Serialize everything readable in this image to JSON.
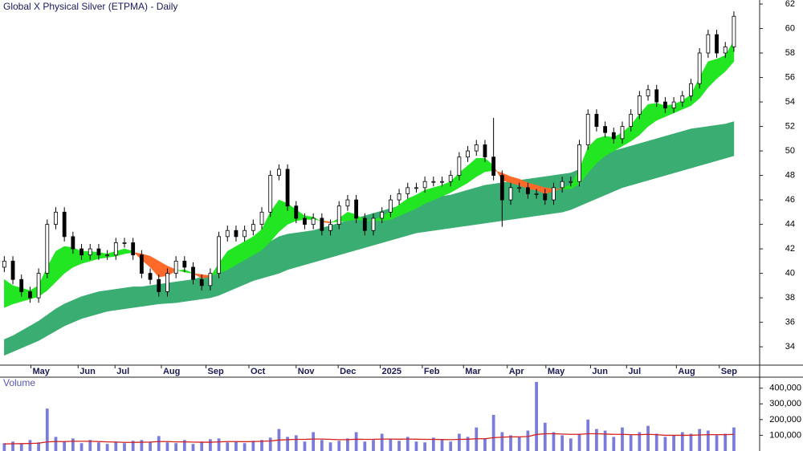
{
  "chart_data": {
    "type": "candlestick",
    "title": "Global X Physical Silver (ETPMA) - Daily",
    "xlim": [
      -0.5,
      88
    ],
    "xticks": [
      {
        "value": 3.1,
        "label": "May"
      },
      {
        "value": 8.6,
        "label": "Jun"
      },
      {
        "value": 12.9,
        "label": "Jul"
      },
      {
        "value": 18.3,
        "label": "Aug"
      },
      {
        "value": 23.5,
        "label": "Sep"
      },
      {
        "value": 28.5,
        "label": "Oct"
      },
      {
        "value": 34,
        "label": "Nov"
      },
      {
        "value": 38.9,
        "label": "Dec"
      },
      {
        "value": 43.8,
        "label": "2025"
      },
      {
        "value": 48.7,
        "label": "Feb"
      },
      {
        "value": 53.5,
        "label": "Mar"
      },
      {
        "value": 58.6,
        "label": "Apr"
      },
      {
        "value": 63.1,
        "label": "May"
      },
      {
        "value": 68.3,
        "label": "Jun"
      },
      {
        "value": 72.5,
        "label": "Jul"
      },
      {
        "value": 78.3,
        "label": "Aug"
      },
      {
        "value": 83.3,
        "label": "Sep"
      }
    ],
    "ylim": [
      32.5,
      62.33
    ],
    "yticks": [
      34,
      36,
      38,
      40,
      42,
      44,
      46,
      48,
      50,
      52,
      54,
      56,
      58,
      60,
      62
    ],
    "open": [
      40.5,
      41,
      39.5,
      38.5,
      38,
      40,
      44,
      45,
      43,
      42,
      41.5,
      42,
      41.5,
      41.5,
      42.5,
      42.5,
      41.5,
      40,
      39.5,
      38.5,
      40,
      41,
      40.5,
      39.5,
      39,
      40,
      43,
      43.5,
      43,
      43.5,
      44,
      45,
      48,
      48.5,
      45.5,
      44.5,
      44,
      44.5,
      43.5,
      44,
      45.5,
      46,
      44.5,
      43.5,
      44.5,
      45,
      46,
      46.5,
      47,
      47,
      47.5,
      47.5,
      47.5,
      48,
      49.5,
      50,
      50.5,
      49.5,
      48,
      46,
      47,
      47,
      46.5,
      46.5,
      46,
      47,
      47.5,
      47.5,
      50.5,
      53,
      52,
      51.5,
      51,
      52,
      53,
      54.5,
      55,
      54,
      53.5,
      54,
      54.5,
      55.5,
      58,
      59.5,
      58,
      58.5
    ],
    "high": [
      41.4,
      41.4,
      39.9,
      38.9,
      40.4,
      44.4,
      45.4,
      45.4,
      43.4,
      42.4,
      42.4,
      42.4,
      41.9,
      42.9,
      42.9,
      42.9,
      41.9,
      40.4,
      39.9,
      40.4,
      41.4,
      41.4,
      40.9,
      39.9,
      40.4,
      43.4,
      43.9,
      43.9,
      43.9,
      44.4,
      45.4,
      48.4,
      48.9,
      48.9,
      45.9,
      44.9,
      44.9,
      44.9,
      44.4,
      45.9,
      46.4,
      46.4,
      44.9,
      44.9,
      45.4,
      46.4,
      46.9,
      47.4,
      47.4,
      47.9,
      47.9,
      47.9,
      48.4,
      49.9,
      50.4,
      50.9,
      50.9,
      52.7,
      48.4,
      47.4,
      47.4,
      47.4,
      46.9,
      46.9,
      47.4,
      47.9,
      47.9,
      50.9,
      53.4,
      53.4,
      52.4,
      51.9,
      52.4,
      53.4,
      54.9,
      55.4,
      55.4,
      54.4,
      54.4,
      54.9,
      55.9,
      58.4,
      59.9,
      59.9,
      58.9,
      61.4
    ],
    "low": [
      40.1,
      39.1,
      38.1,
      37.6,
      37.6,
      39.6,
      43.6,
      42.6,
      41.6,
      41.1,
      41.1,
      41.1,
      41.1,
      41.1,
      42.1,
      41.1,
      39.6,
      39.1,
      38.1,
      38.1,
      39.6,
      40.1,
      39.1,
      38.6,
      38.6,
      39.6,
      42.6,
      42.6,
      42.6,
      43.1,
      43.6,
      44.6,
      47.6,
      45.1,
      44.1,
      43.6,
      43.6,
      43.1,
      43.1,
      43.6,
      45.1,
      44.1,
      43.1,
      43.1,
      44.1,
      44.6,
      45.6,
      46.1,
      46.6,
      46.6,
      47.1,
      47.1,
      47.1,
      47.6,
      49.1,
      49.6,
      49.1,
      47.6,
      43.8,
      45.6,
      46.6,
      46.1,
      46.1,
      45.6,
      45.6,
      46.6,
      47.1,
      47.1,
      50.1,
      51.6,
      51.1,
      50.6,
      50.6,
      51.6,
      52.6,
      54.1,
      53.6,
      53.1,
      53.1,
      53.6,
      54.1,
      55.1,
      57.6,
      57.6,
      57.6,
      58.1
    ],
    "close": [
      41,
      39.5,
      38.5,
      38,
      40,
      44,
      45,
      43,
      42,
      41.5,
      42,
      41.5,
      41.5,
      42.5,
      42.5,
      41.5,
      40,
      39.5,
      38.5,
      40,
      41,
      40.5,
      39.5,
      39,
      40,
      43,
      43.5,
      43,
      43.5,
      44,
      45,
      48,
      48.5,
      45.5,
      44.5,
      44,
      44.5,
      43.5,
      44,
      45.5,
      46,
      44.5,
      43.5,
      44.5,
      45,
      46,
      46.5,
      47,
      47,
      47.5,
      47.5,
      47.5,
      48,
      49.5,
      50,
      50.5,
      49.5,
      48,
      46,
      47,
      47,
      46.5,
      46.5,
      46,
      47,
      47.5,
      47.5,
      50.5,
      53,
      52,
      51.5,
      51,
      52,
      53,
      54.5,
      55,
      54,
      53.5,
      54,
      54.5,
      55.5,
      58,
      59.5,
      58,
      58.5,
      61
    ],
    "up_color": "#ffffff",
    "down_color": "#000000",
    "short_band": {
      "fast": [
        39.5,
        39,
        38.8,
        38.6,
        39,
        40.5,
        41.8,
        42.2,
        42.1,
        41.8,
        41.8,
        41.7,
        41.6,
        41.8,
        42,
        41.8,
        41.1,
        40.5,
        39.7,
        39.8,
        40.2,
        40.3,
        40,
        39.6,
        39.7,
        40.8,
        41.8,
        42.2,
        42.6,
        43,
        43.6,
        45,
        46,
        45.7,
        45.2,
        44.7,
        44.6,
        44.2,
        44.1,
        44.5,
        45,
        44.8,
        44.3,
        44.4,
        44.6,
        45.1,
        45.6,
        46.1,
        46.4,
        46.8,
        47,
        47.2,
        47.5,
        48.2,
        48.8,
        49.4,
        49.4,
        48.8,
        47.6,
        47.4,
        47.2,
        46.9,
        46.8,
        46.5,
        46.7,
        47,
        47.2,
        48.5,
        50.3,
        51,
        51.2,
        51.1,
        51.5,
        52.1,
        53,
        53.8,
        53.9,
        53.7,
        53.8,
        54.1,
        54.6,
        56,
        57.3,
        57.5,
        57.8,
        59
      ],
      "slow": [
        37.2,
        37.5,
        37.7,
        37.9,
        38.1,
        38.6,
        39.3,
        40,
        40.5,
        40.8,
        41,
        41.2,
        41.3,
        41.4,
        41.6,
        41.7,
        41.6,
        41.4,
        41,
        40.6,
        40.3,
        40.1,
        40,
        39.9,
        39.8,
        40,
        40.3,
        40.7,
        41.1,
        41.5,
        41.9,
        42.6,
        43.4,
        44,
        44.3,
        44.4,
        44.4,
        44.3,
        44.2,
        44.2,
        44.3,
        44.4,
        44.3,
        44.3,
        44.3,
        44.4,
        44.7,
        45,
        45.3,
        45.7,
        46,
        46.3,
        46.6,
        47,
        47.4,
        47.9,
        48.3,
        48.4,
        48.2,
        47.9,
        47.7,
        47.4,
        47.2,
        47,
        46.9,
        46.9,
        46.9,
        47.3,
        48.2,
        49,
        49.6,
        50,
        50.4,
        50.8,
        51.3,
        52,
        52.5,
        52.8,
        53.1,
        53.4,
        53.7,
        54.3,
        55.2,
        55.9,
        56.5,
        57.3
      ],
      "rising_color": "#22e622",
      "falling_color": "#ff6a2a"
    },
    "long_band": {
      "fast": [
        34.6,
        34.9,
        35.3,
        35.7,
        36.1,
        36.6,
        37.1,
        37.5,
        37.8,
        38.1,
        38.3,
        38.5,
        38.6,
        38.7,
        38.8,
        38.9,
        38.9,
        39,
        39.1,
        39.2,
        39.3,
        39.4,
        39.5,
        39.7,
        39.9,
        40.2,
        40.6,
        41,
        41.4,
        41.8,
        42.1,
        42.6,
        43,
        43.2,
        43.3,
        43.4,
        43.5,
        43.7,
        43.9,
        44.1,
        44.3,
        44.5,
        44.7,
        44.9,
        45.1,
        45.3,
        45.5,
        45.7,
        45.9,
        46.1,
        46.2,
        46.3,
        46.4,
        46.6,
        46.8,
        47,
        47.2,
        47.3,
        47.4,
        47.5,
        47.6,
        47.7,
        47.8,
        47.9,
        48,
        48.1,
        48.2,
        48.5,
        48.9,
        49.3,
        49.7,
        50,
        50.2,
        50.4,
        50.6,
        50.8,
        51,
        51.2,
        51.4,
        51.6,
        51.8,
        51.9,
        52,
        52.1,
        52.2,
        52.4
      ],
      "slow": [
        33.3,
        33.6,
        33.9,
        34.2,
        34.5,
        34.9,
        35.3,
        35.7,
        36,
        36.3,
        36.5,
        36.7,
        36.9,
        37,
        37.1,
        37.2,
        37.3,
        37.4,
        37.5,
        37.55,
        37.6,
        37.7,
        37.8,
        37.9,
        38,
        38.2,
        38.5,
        38.8,
        39.1,
        39.4,
        39.6,
        39.8,
        40,
        40.3,
        40.5,
        40.7,
        40.9,
        41.1,
        41.3,
        41.5,
        41.7,
        41.9,
        42.1,
        42.3,
        42.5,
        42.7,
        42.9,
        43.1,
        43.3,
        43.4,
        43.5,
        43.6,
        43.7,
        43.8,
        43.9,
        44,
        44.1,
        44.2,
        44.3,
        44.4,
        44.5,
        44.6,
        44.7,
        44.8,
        44.9,
        45,
        45.2,
        45.5,
        45.8,
        46.1,
        46.4,
        46.7,
        47,
        47.2,
        47.4,
        47.6,
        47.8,
        48,
        48.2,
        48.4,
        48.6,
        48.8,
        49,
        49.2,
        49.4,
        49.6
      ],
      "color": "#3aae72"
    },
    "volume": {
      "label": "Volume",
      "values": [
        50000,
        60000,
        45000,
        70000,
        55000,
        270000,
        90000,
        60000,
        80000,
        50000,
        70000,
        55000,
        45000,
        60000,
        50000,
        65000,
        70000,
        60000,
        95000,
        55000,
        50000,
        70000,
        45000,
        60000,
        75000,
        80000,
        55000,
        60000,
        50000,
        65000,
        70000,
        85000,
        140000,
        90000,
        100000,
        60000,
        120000,
        70000,
        55000,
        65000,
        80000,
        120000,
        60000,
        70000,
        110000,
        75000,
        65000,
        90000,
        60000,
        55000,
        85000,
        70000,
        60000,
        110000,
        90000,
        150000,
        80000,
        230000,
        120000,
        100000,
        90000,
        130000,
        440000,
        180000,
        120000,
        100000,
        80000,
        110000,
        200000,
        140000,
        130000,
        90000,
        150000,
        100000,
        120000,
        160000,
        110000,
        90000,
        100000,
        120000,
        110000,
        140000,
        130000,
        100000,
        110000,
        150000
      ],
      "ma": [
        45000,
        46000,
        47000,
        48000,
        50000,
        58000,
        60000,
        60000,
        62000,
        62000,
        62000,
        60000,
        58000,
        57000,
        55000,
        55000,
        56000,
        57000,
        60000,
        60000,
        58000,
        58000,
        57000,
        56000,
        56000,
        58000,
        60000,
        60000,
        59000,
        60000,
        62000,
        64000,
        70000,
        72000,
        74000,
        74000,
        76000,
        76000,
        74000,
        72000,
        72000,
        75000,
        74000,
        74000,
        76000,
        76000,
        75000,
        76000,
        75000,
        74000,
        74000,
        73000,
        72000,
        74000,
        75000,
        78000,
        78000,
        85000,
        88000,
        90000,
        90000,
        92000,
        105000,
        110000,
        110000,
        108000,
        106000,
        106000,
        110000,
        110000,
        108000,
        106000,
        106000,
        104000,
        104000,
        106000,
        104000,
        100000,
        100000,
        100000,
        100000,
        102000,
        104000,
        104000,
        104000,
        106000
      ],
      "color": "#7b7bdc",
      "ma_color": "#d42020",
      "ylim": [
        0,
        470000
      ],
      "yticks": [
        {
          "value": 100000,
          "label": "100,000"
        },
        {
          "value": 200000,
          "label": "200,000"
        },
        {
          "value": 300000,
          "label": "300,000"
        },
        {
          "value": 400000,
          "label": "400,000"
        }
      ]
    }
  }
}
